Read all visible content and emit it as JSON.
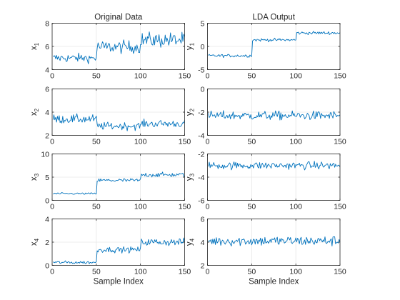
{
  "colors": {
    "line": "#0072BD",
    "grid": "#e6e6e6",
    "axis": "#262626"
  },
  "chart_data": [
    {
      "type": "line",
      "title": "Original Data",
      "ylabel": "x",
      "ylabel_sub": "1",
      "xlabel": "",
      "xlim": [
        0,
        150
      ],
      "ylim": [
        4,
        8
      ],
      "xticks": [
        0,
        50,
        100,
        150
      ],
      "yticks": [
        4,
        6,
        8
      ],
      "grid": true,
      "x_start": 1,
      "x_end": 150,
      "segments": [
        {
          "from": 1,
          "to": 50,
          "mean": 5.0,
          "spread": 0.35
        },
        {
          "from": 51,
          "to": 100,
          "mean": 5.95,
          "spread": 0.5
        },
        {
          "from": 101,
          "to": 150,
          "mean": 6.55,
          "spread": 0.6
        }
      ]
    },
    {
      "type": "line",
      "title": "LDA Output",
      "ylabel": "y",
      "ylabel_sub": "1",
      "xlabel": "",
      "xlim": [
        0,
        150
      ],
      "ylim": [
        -5,
        5
      ],
      "xticks": [
        0,
        50,
        100,
        150
      ],
      "yticks": [
        -5,
        0,
        5
      ],
      "grid": true,
      "x_start": 1,
      "x_end": 150,
      "segments": [
        {
          "from": 1,
          "to": 50,
          "mean": -2.0,
          "spread": 0.3
        },
        {
          "from": 51,
          "to": 100,
          "mean": 1.4,
          "spread": 0.3
        },
        {
          "from": 101,
          "to": 150,
          "mean": 2.9,
          "spread": 0.3
        }
      ]
    },
    {
      "type": "line",
      "title": "",
      "ylabel": "x",
      "ylabel_sub": "2",
      "xlabel": "",
      "xlim": [
        0,
        150
      ],
      "ylim": [
        2,
        6
      ],
      "xticks": [
        0,
        50,
        100,
        150
      ],
      "yticks": [
        2,
        4,
        6
      ],
      "grid": true,
      "x_start": 1,
      "x_end": 150,
      "segments": [
        {
          "from": 1,
          "to": 50,
          "mean": 3.4,
          "spread": 0.35
        },
        {
          "from": 51,
          "to": 100,
          "mean": 2.8,
          "spread": 0.3
        },
        {
          "from": 101,
          "to": 150,
          "mean": 3.0,
          "spread": 0.3
        }
      ]
    },
    {
      "type": "line",
      "title": "",
      "ylabel": "y",
      "ylabel_sub": "2",
      "xlabel": "",
      "xlim": [
        0,
        150
      ],
      "ylim": [
        -4,
        0
      ],
      "xticks": [
        0,
        50,
        100,
        150
      ],
      "yticks": [
        -4,
        -2,
        0
      ],
      "grid": true,
      "x_start": 1,
      "x_end": 150,
      "segments": [
        {
          "from": 1,
          "to": 150,
          "mean": -2.3,
          "spread": 0.35
        }
      ]
    },
    {
      "type": "line",
      "title": "",
      "ylabel": "x",
      "ylabel_sub": "3",
      "xlabel": "",
      "xlim": [
        0,
        150
      ],
      "ylim": [
        0,
        10
      ],
      "xticks": [
        0,
        50,
        100,
        150
      ],
      "yticks": [
        0,
        5,
        10
      ],
      "grid": true,
      "x_start": 1,
      "x_end": 150,
      "segments": [
        {
          "from": 1,
          "to": 50,
          "mean": 1.45,
          "spread": 0.18
        },
        {
          "from": 51,
          "to": 100,
          "mean": 4.3,
          "spread": 0.4
        },
        {
          "from": 101,
          "to": 150,
          "mean": 5.5,
          "spread": 0.45
        }
      ]
    },
    {
      "type": "line",
      "title": "",
      "ylabel": "y",
      "ylabel_sub": "3",
      "xlabel": "",
      "xlim": [
        0,
        150
      ],
      "ylim": [
        -6,
        -2
      ],
      "xticks": [
        0,
        50,
        100,
        150
      ],
      "yticks": [
        -6,
        -4,
        -2
      ],
      "grid": true,
      "x_start": 1,
      "x_end": 150,
      "segments": [
        {
          "from": 1,
          "to": 150,
          "mean": -3.0,
          "spread": 0.3
        }
      ]
    },
    {
      "type": "line",
      "title": "",
      "ylabel": "x",
      "ylabel_sub": "4",
      "xlabel": "Sample Index",
      "xlim": [
        0,
        150
      ],
      "ylim": [
        0,
        4
      ],
      "xticks": [
        0,
        50,
        100,
        150
      ],
      "yticks": [
        0,
        2,
        4
      ],
      "grid": true,
      "x_start": 1,
      "x_end": 150,
      "segments": [
        {
          "from": 1,
          "to": 50,
          "mean": 0.25,
          "spread": 0.12
        },
        {
          "from": 51,
          "to": 100,
          "mean": 1.35,
          "spread": 0.22
        },
        {
          "from": 101,
          "to": 150,
          "mean": 2.0,
          "spread": 0.3
        }
      ]
    },
    {
      "type": "line",
      "title": "",
      "ylabel": "y",
      "ylabel_sub": "4",
      "xlabel": "Sample Index",
      "xlim": [
        0,
        150
      ],
      "ylim": [
        2,
        6
      ],
      "xticks": [
        0,
        50,
        100,
        150
      ],
      "yticks": [
        2,
        4,
        6
      ],
      "grid": true,
      "x_start": 1,
      "x_end": 150,
      "segments": [
        {
          "from": 1,
          "to": 150,
          "mean": 4.1,
          "spread": 0.4
        }
      ]
    }
  ]
}
